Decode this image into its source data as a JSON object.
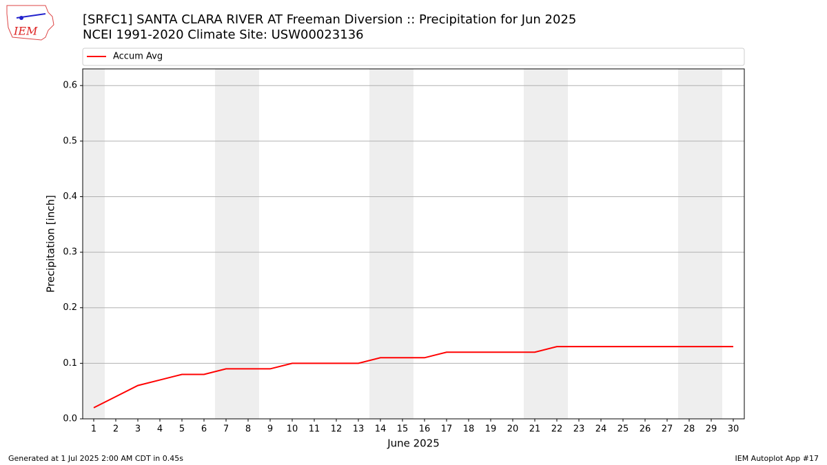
{
  "logo": {
    "text": "IEM"
  },
  "chart_data": {
    "type": "line",
    "title": "[SRFC1] SANTA CLARA RIVER  AT Freeman Diversion :: Precipitation for Jun 2025",
    "subtitle": "NCEI 1991-2020 Climate Site: USW00023136",
    "x_label": "June 2025",
    "y_label": "Precipitation [inch]",
    "x": [
      1,
      2,
      3,
      4,
      5,
      6,
      7,
      8,
      9,
      10,
      11,
      12,
      13,
      14,
      15,
      16,
      17,
      18,
      19,
      20,
      21,
      22,
      23,
      24,
      25,
      26,
      27,
      28,
      29,
      30
    ],
    "series": [
      {
        "name": "Accum Avg",
        "color": "#ff0000",
        "values": [
          0.02,
          0.04,
          0.06,
          0.07,
          0.08,
          0.08,
          0.09,
          0.09,
          0.09,
          0.1,
          0.1,
          0.1,
          0.1,
          0.11,
          0.11,
          0.11,
          0.12,
          0.12,
          0.12,
          0.12,
          0.12,
          0.13,
          0.13,
          0.13,
          0.13,
          0.13,
          0.13,
          0.13,
          0.13,
          0.13
        ]
      }
    ],
    "shaded_days": [
      1,
      7,
      8,
      14,
      15,
      21,
      22,
      28,
      29
    ],
    "shade_color": "#eeeeee",
    "xlim": [
      0.5,
      30.5
    ],
    "xticks": [
      1,
      2,
      3,
      4,
      5,
      6,
      7,
      8,
      9,
      10,
      11,
      12,
      13,
      14,
      15,
      16,
      17,
      18,
      19,
      20,
      21,
      22,
      23,
      24,
      25,
      26,
      27,
      28,
      29,
      30
    ],
    "ylim": [
      0,
      0.63
    ],
    "yticks": [
      {
        "value": 0,
        "label": "0.0"
      },
      0.1,
      0.2,
      0.3,
      0.4,
      0.5,
      0.6
    ],
    "grid": true,
    "legend": "top"
  },
  "footer": {
    "left": "Generated at 1 Jul 2025 2:00 AM CDT in 0.45s",
    "right": "IEM Autoplot App #17"
  }
}
